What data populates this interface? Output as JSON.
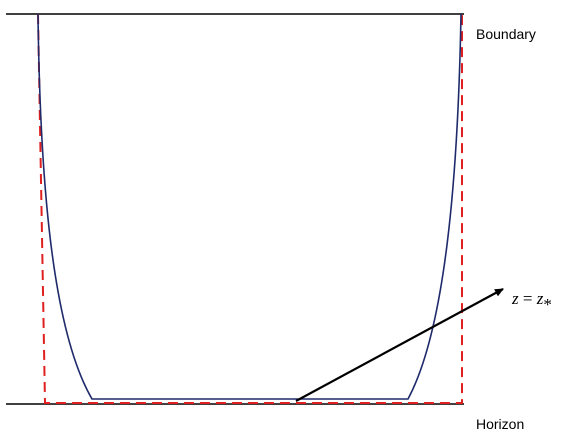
{
  "labels": {
    "boundary": "Boundary",
    "horizon": "Horizon",
    "annotation_lhs": "z",
    "annotation_eq": " = ",
    "annotation_rhs": "z",
    "annotation_sub": "*"
  },
  "colors": {
    "lines": "#000000",
    "curve": "#1f2a6b",
    "dashed": "#e02020"
  }
}
